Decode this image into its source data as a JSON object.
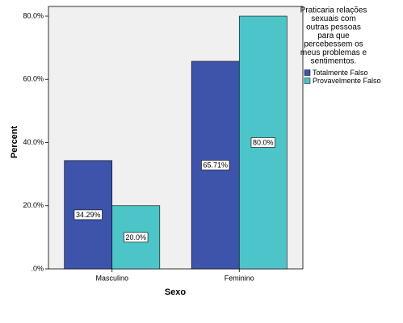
{
  "chart_data": {
    "type": "bar",
    "categories": [
      "Masculino",
      "Feminino"
    ],
    "series": [
      {
        "name": "Totalmente Falso",
        "color": "#3e54ab",
        "values": [
          34.29,
          65.71
        ],
        "value_labels": [
          "34.29%",
          "65.71%"
        ]
      },
      {
        "name": "Provavelmente Falso",
        "color": "#4cc4c8",
        "values": [
          20.0,
          80.0
        ],
        "value_labels": [
          "20.0%",
          "80.0%"
        ]
      }
    ],
    "ylim": [
      0,
      83.07
    ],
    "yticks": [
      {
        "value": 0,
        "label": ".0%"
      },
      {
        "value": 20,
        "label": "20.0%"
      },
      {
        "value": 40,
        "label": "40.0%"
      },
      {
        "value": 60,
        "label": "60.0%"
      },
      {
        "value": 80,
        "label": "80.0%"
      }
    ],
    "xlabel": "Sexo",
    "ylabel": "Percent",
    "legend_title": [
      "Praticaria relações",
      "sexuais com",
      "outras pessoas",
      "para que",
      "percebessem os",
      "meus problemas e",
      "sentimentos."
    ]
  }
}
